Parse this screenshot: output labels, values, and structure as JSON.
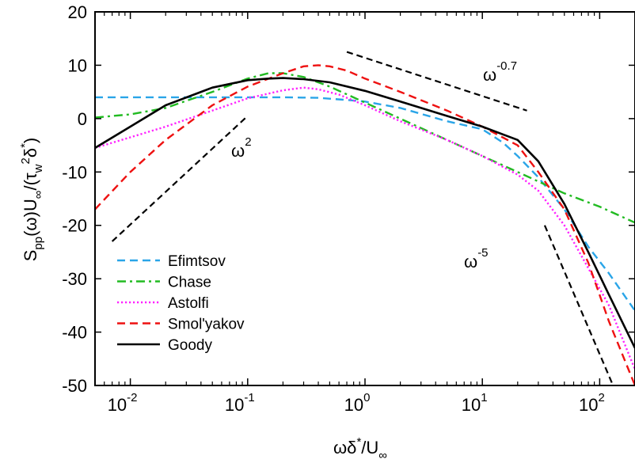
{
  "chart_data": {
    "type": "line",
    "xlabel": {
      "base": "ωδ",
      "sup": "*",
      "mid": "/U",
      "sub": "∞"
    },
    "ylabel": {
      "pre": "S",
      "sub1": "pp",
      "mid1": "(ω)U",
      "sub2": "∞",
      "mid2": "/(τ",
      "sub3": "w",
      "sup3": "2",
      "mid3": "δ",
      "sup4": "*",
      "post": ")"
    },
    "xscale": "log",
    "xlim": [
      0.005,
      200
    ],
    "ylim": [
      -50,
      20
    ],
    "x_ticks": [
      {
        "value": 0.01,
        "base": "10",
        "exp": "-2"
      },
      {
        "value": 0.1,
        "base": "10",
        "exp": "-1"
      },
      {
        "value": 1,
        "base": "10",
        "exp": "0"
      },
      {
        "value": 10,
        "base": "10",
        "exp": "1"
      },
      {
        "value": 100,
        "base": "10",
        "exp": "2"
      }
    ],
    "y_ticks": [
      "20",
      "10",
      "0",
      "-10",
      "-20",
      "-30",
      "-40",
      "-50"
    ],
    "y_tick_values": [
      20,
      10,
      0,
      -10,
      -20,
      -30,
      -40,
      -50
    ],
    "grid": false,
    "legend_position": "bottom-left",
    "series": [
      {
        "name": "Efimtsov",
        "color": "#2aa5e8",
        "style": "dashed",
        "points": [
          [
            0.005,
            4.0
          ],
          [
            0.01,
            4.0
          ],
          [
            0.03,
            4.0
          ],
          [
            0.1,
            4.0
          ],
          [
            0.2,
            4.0
          ],
          [
            0.4,
            3.9
          ],
          [
            0.7,
            3.5
          ],
          [
            1,
            3.2
          ],
          [
            2,
            2.0
          ],
          [
            5,
            -0.5
          ],
          [
            10,
            -2.0
          ],
          [
            15,
            -4.5
          ],
          [
            20,
            -7.0
          ],
          [
            30,
            -11
          ],
          [
            50,
            -17
          ],
          [
            80,
            -24
          ],
          [
            120,
            -29
          ],
          [
            200,
            -36
          ]
        ]
      },
      {
        "name": "Chase",
        "color": "#22bb22",
        "style": "dashdot",
        "points": [
          [
            0.005,
            0.2
          ],
          [
            0.01,
            0.8
          ],
          [
            0.02,
            2.0
          ],
          [
            0.05,
            5.0
          ],
          [
            0.1,
            7.5
          ],
          [
            0.15,
            8.5
          ],
          [
            0.2,
            8.5
          ],
          [
            0.3,
            7.8
          ],
          [
            0.5,
            6.0
          ],
          [
            1,
            3.0
          ],
          [
            2,
            0.0
          ],
          [
            5,
            -4.0
          ],
          [
            10,
            -7.0
          ],
          [
            20,
            -10.0
          ],
          [
            50,
            -14.0
          ],
          [
            100,
            -16.5
          ],
          [
            200,
            -19.5
          ]
        ]
      },
      {
        "name": "Astolfi",
        "color": "#ff22ff",
        "style": "dotted",
        "points": [
          [
            0.005,
            -5.5
          ],
          [
            0.01,
            -3.5
          ],
          [
            0.02,
            -1.5
          ],
          [
            0.05,
            1.5
          ],
          [
            0.1,
            3.8
          ],
          [
            0.2,
            5.3
          ],
          [
            0.3,
            5.8
          ],
          [
            0.4,
            5.5
          ],
          [
            0.6,
            4.5
          ],
          [
            1,
            2.5
          ],
          [
            2,
            -0.5
          ],
          [
            5,
            -4.0
          ],
          [
            10,
            -7.0
          ],
          [
            20,
            -10.5
          ],
          [
            30,
            -13.5
          ],
          [
            50,
            -20
          ],
          [
            80,
            -28
          ],
          [
            120,
            -35
          ],
          [
            200,
            -47
          ]
        ]
      },
      {
        "name": "Smol'yakov",
        "color": "#ee1111",
        "style": "dashed",
        "points": [
          [
            0.005,
            -17
          ],
          [
            0.01,
            -10
          ],
          [
            0.02,
            -4
          ],
          [
            0.05,
            2.5
          ],
          [
            0.1,
            6.0
          ],
          [
            0.2,
            8.5
          ],
          [
            0.3,
            9.8
          ],
          [
            0.4,
            10.0
          ],
          [
            0.5,
            9.8
          ],
          [
            0.7,
            9.0
          ],
          [
            1,
            7.5
          ],
          [
            2,
            5.0
          ],
          [
            5,
            1.5
          ],
          [
            10,
            -1.5
          ],
          [
            20,
            -5.0
          ],
          [
            30,
            -10.0
          ],
          [
            50,
            -17
          ],
          [
            80,
            -27
          ],
          [
            120,
            -38
          ],
          [
            200,
            -50
          ]
        ]
      },
      {
        "name": "Goody",
        "color": "#000000",
        "style": "solid",
        "points": [
          [
            0.005,
            -5.5
          ],
          [
            0.01,
            -1.5
          ],
          [
            0.02,
            2.5
          ],
          [
            0.05,
            5.8
          ],
          [
            0.1,
            7.2
          ],
          [
            0.15,
            7.5
          ],
          [
            0.2,
            7.6
          ],
          [
            0.3,
            7.4
          ],
          [
            0.5,
            6.8
          ],
          [
            1,
            5.2
          ],
          [
            2,
            3.2
          ],
          [
            5,
            0.5
          ],
          [
            10,
            -1.5
          ],
          [
            20,
            -4.0
          ],
          [
            30,
            -8.0
          ],
          [
            50,
            -16
          ],
          [
            80,
            -25
          ],
          [
            120,
            -33
          ],
          [
            200,
            -43
          ]
        ]
      }
    ],
    "reference_lines": [
      {
        "label_base": "ω",
        "label_exp": "2",
        "points": [
          [
            0.007,
            -23
          ],
          [
            0.1,
            0.5
          ]
        ]
      },
      {
        "label_base": "ω",
        "label_exp": "-0.7",
        "points": [
          [
            0.7,
            12.5
          ],
          [
            24,
            1.5
          ]
        ]
      },
      {
        "label_base": "ω",
        "label_exp": "-5",
        "points": [
          [
            34,
            -20
          ],
          [
            130,
            -50
          ]
        ]
      }
    ]
  }
}
